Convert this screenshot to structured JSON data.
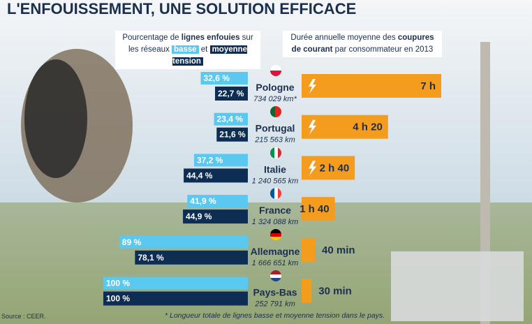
{
  "chart_data": {
    "type": "bar",
    "title": "L'ENFOUISSEMENT, UNE SOLUTION EFFICACE",
    "left_header": {
      "text_1": "Pourcentage de",
      "bold": "lignes enfouies",
      "text_2": "sur les réseaux",
      "connector": "et"
    },
    "categories": [
      "Pologne",
      "Portugal",
      "Italie",
      "France",
      "Allemagne",
      "Pays-Bas"
    ],
    "network_lengths": [
      "734 029 km*",
      "215 563 km",
      "1 240 565 km",
      "1 324 088 km",
      "1 666 651 km",
      "252 791 km"
    ],
    "xlim": [
      0,
      100
    ],
    "series": [
      {
        "name": "basse",
        "color": "#5bc8f0",
        "values": [
          32.6,
          23.4,
          37.2,
          41.9,
          89,
          100
        ],
        "value_labels": [
          "32,6 %",
          "23,4 %",
          "37,2 %",
          "41,9 %",
          "89 %",
          "100 %"
        ]
      },
      {
        "name": "moyenne tension",
        "color": "#0d2d52",
        "values": [
          22.7,
          21.6,
          44.4,
          44.9,
          78.1,
          100
        ],
        "value_labels": [
          "22,7 %",
          "21,6 %",
          "44,4 %",
          "44,9 %",
          "78,1 %",
          "100 %"
        ]
      }
    ],
    "outages": {
      "header": {
        "text_1": "Durée annuelle moyenne des",
        "bold": "coupures de courant",
        "text_2": "par consommateur en 2013"
      },
      "color": "#f39c1e",
      "xlim": [
        0,
        420
      ],
      "values": [
        420,
        260,
        160,
        100,
        40,
        30
      ],
      "value_labels": [
        "7 h",
        "4 h 20",
        "2 h 40",
        "1 h 40",
        "40 min",
        "30 min"
      ]
    },
    "footnote": "* Longueur totale de lignes basse et moyenne tension dans le pays.",
    "source": "Source : CEER."
  }
}
